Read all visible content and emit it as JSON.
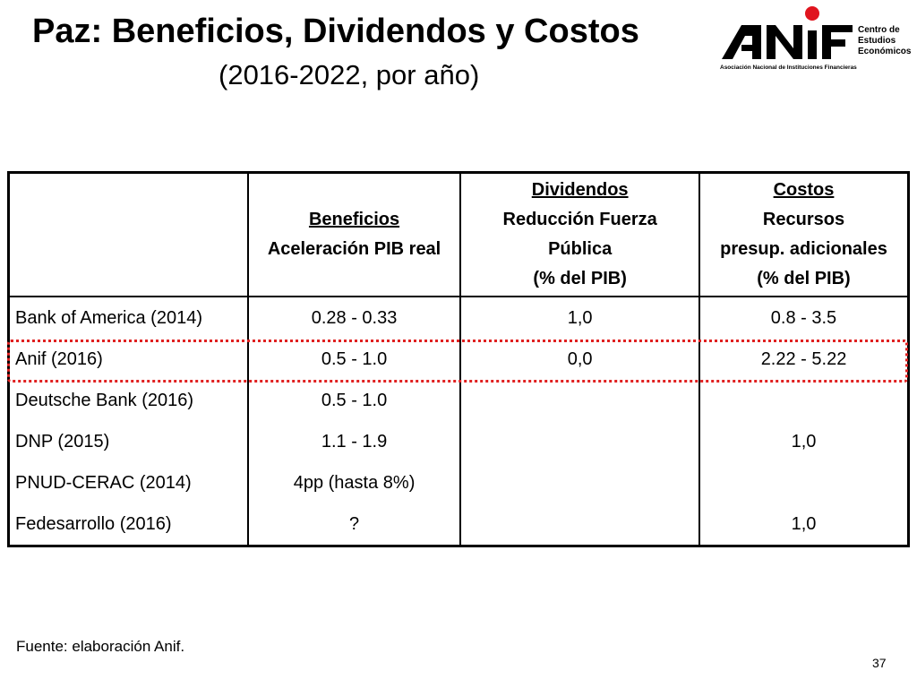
{
  "title": "Paz: Beneficios, Dividendos y Costos",
  "subtitle": "(2016-2022, por año)",
  "logo": {
    "wordmark": "ANIF",
    "right_text": "Centro de\nEstudios\nEconómicos",
    "sub_text": "Asociación Nacional de Instituciones Financieras",
    "accent_color": "#e0141e"
  },
  "table": {
    "headers": [
      {
        "lines": [
          ""
        ]
      },
      {
        "lines": [
          "Beneficios",
          "Aceleración PIB real"
        ]
      },
      {
        "lines": [
          "Dividendos ",
          "Reducción Fuerza",
          "Pública",
          "(% del PIB)"
        ]
      },
      {
        "lines": [
          "Costos",
          "Recursos",
          "presup. adicionales",
          "(% del PIB)"
        ]
      }
    ],
    "rows": [
      {
        "label": "Bank of America (2014)",
        "beneficios": "0.28 - 0.33",
        "dividendos": "1,0",
        "costos": "0.8 - 3.5"
      },
      {
        "label": "Anif (2016)",
        "beneficios": "0.5 - 1.0",
        "dividendos": "0,0",
        "costos": "2.22 - 5.22"
      },
      {
        "label": "Deutsche Bank (2016)",
        "beneficios": "0.5 - 1.0",
        "dividendos": "",
        "costos": ""
      },
      {
        "label": "DNP (2015)",
        "beneficios": "1.1 - 1.9",
        "dividendos": "",
        "costos": "1,0"
      },
      {
        "label": "PNUD-CERAC (2014)",
        "beneficios": "4pp (hasta 8%)",
        "dividendos": "",
        "costos": ""
      },
      {
        "label": "Fedesarrollo (2016)",
        "beneficios": "?",
        "dividendos": "",
        "costos": "1,0"
      }
    ],
    "highlight_color": "#e02020"
  },
  "footer": "Fuente: elaboración Anif.",
  "page_number": "37"
}
